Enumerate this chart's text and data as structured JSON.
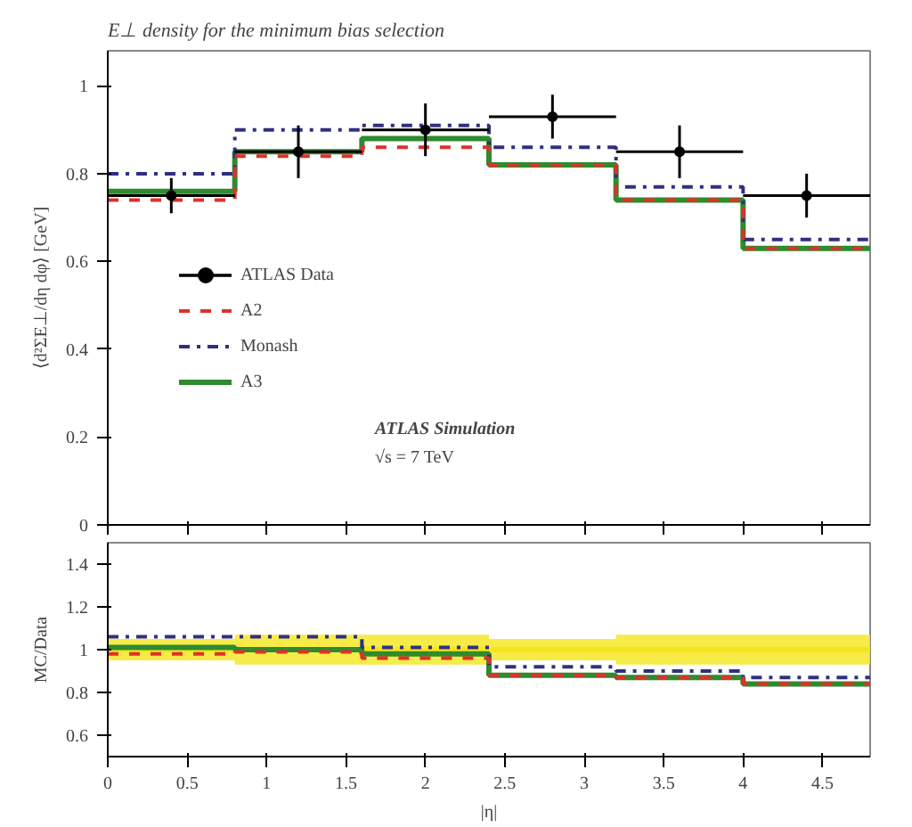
{
  "chart_data": [
    {
      "type": "step",
      "title": "E⊥ density for the minimum bias selection",
      "ylabel": "⟨d²ΣE⊥/dη dφ⟩ [GeV]",
      "xlim": [
        0,
        4.8
      ],
      "ylim": [
        0,
        1.08
      ],
      "yticks": [
        0,
        0.2,
        0.4,
        0.6,
        0.8,
        1
      ],
      "xticks": [
        0,
        0.5,
        1,
        1.5,
        2,
        2.5,
        3,
        3.5,
        4,
        4.5
      ],
      "tick_labels": "y",
      "grid": false,
      "legend": "bottom left",
      "annotations": [
        "ATLAS Simulation",
        "√s = 7 TeV"
      ],
      "series": [
        {
          "name": "ATLAS Data",
          "type": "scatter",
          "marker": "circle",
          "color": "#000000",
          "x": [
            0.4,
            1.2,
            2.0,
            2.8,
            3.6,
            4.4
          ],
          "values": [
            0.75,
            0.85,
            0.9,
            0.93,
            0.85,
            0.75
          ],
          "errors": [
            0.04,
            0.06,
            0.06,
            0.05,
            0.06,
            0.05
          ],
          "xerrors": [
            0.4,
            0.4,
            0.4,
            0.4,
            0.4,
            0.4
          ]
        },
        {
          "name": "A2",
          "line_style": "dashed",
          "color": "#e0302a",
          "x": [
            0,
            0.8,
            1.6,
            2.4,
            3.2,
            4.0,
            4.8
          ],
          "values": [
            0.74,
            0.84,
            0.86,
            0.82,
            0.74,
            0.63,
            0.63
          ]
        },
        {
          "name": "Monash",
          "line_style": "dashdot",
          "color": "#303080",
          "x": [
            0,
            0.8,
            1.6,
            2.4,
            3.2,
            4.0,
            4.8
          ],
          "values": [
            0.8,
            0.9,
            0.91,
            0.86,
            0.77,
            0.65,
            0.65
          ]
        },
        {
          "name": "A3",
          "line_style": "solid",
          "color": "#2e8b2e",
          "x": [
            0,
            0.8,
            1.6,
            2.4,
            3.2,
            4.0,
            4.8
          ],
          "values": [
            0.76,
            0.85,
            0.88,
            0.82,
            0.74,
            0.63,
            0.63
          ]
        }
      ]
    },
    {
      "type": "step",
      "xlabel": "|η|",
      "ylabel": "MC/Data",
      "xlim": [
        0,
        4.8
      ],
      "ylim": [
        0.5,
        1.5
      ],
      "yticks": [
        0.6,
        0.8,
        1,
        1.2,
        1.4
      ],
      "xticks": [
        0,
        0.5,
        1,
        1.5,
        2,
        2.5,
        3,
        3.5,
        4,
        4.5
      ],
      "grid": false,
      "series": [
        {
          "line_style": "solid",
          "color": "#f5e61a",
          "x": [
            0,
            0.8,
            1.6,
            2.4,
            3.2,
            4.0,
            4.8
          ],
          "values": [
            1,
            1,
            1,
            1,
            1,
            1,
            1
          ],
          "lower": [
            0.95,
            0.93,
            0.93,
            0.95,
            0.93,
            0.93,
            0.93
          ],
          "upper": [
            1.05,
            1.07,
            1.07,
            1.05,
            1.07,
            1.07,
            1.07
          ]
        },
        {
          "line_style": "dashed",
          "color": "#e0302a",
          "x": [
            0,
            0.8,
            1.6,
            2.4,
            3.2,
            4.0,
            4.8
          ],
          "values": [
            0.98,
            0.99,
            0.96,
            0.88,
            0.87,
            0.84,
            0.84
          ]
        },
        {
          "line_style": "dashdot",
          "color": "#303080",
          "x": [
            0,
            0.8,
            1.6,
            2.4,
            3.2,
            4.0,
            4.8
          ],
          "values": [
            1.06,
            1.06,
            1.01,
            0.92,
            0.9,
            0.87,
            0.87
          ]
        },
        {
          "line_style": "solid",
          "color": "#2e8b2e",
          "x": [
            0,
            0.8,
            1.6,
            2.4,
            3.2,
            4.0,
            4.8
          ],
          "values": [
            1.01,
            1.0,
            0.98,
            0.88,
            0.87,
            0.84,
            0.84
          ]
        }
      ]
    }
  ]
}
